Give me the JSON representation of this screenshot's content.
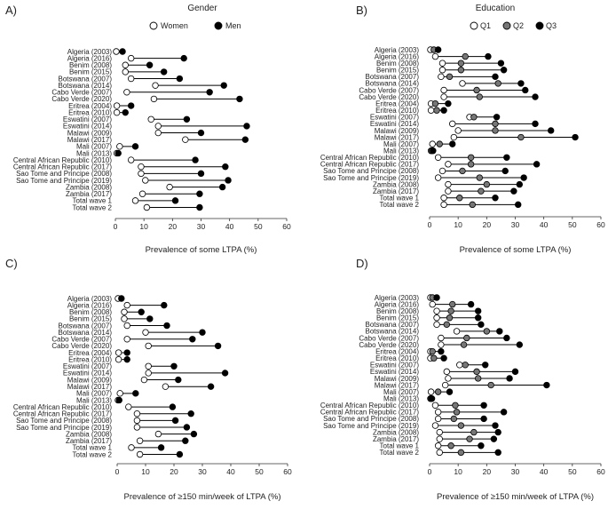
{
  "chart_data": [
    {
      "type": "dot-line",
      "panel_label": "A)",
      "title": "Gender",
      "xlabel": "Prevalence of some LTPA  (%)",
      "xlim": [
        0,
        60
      ],
      "xticks": [
        "0",
        "10",
        "20",
        "30",
        "40",
        "50",
        "60"
      ],
      "categories": [
        "Algeria (2003)",
        "Algeria (2016)",
        "Benim (2008)",
        "Benim (2015)",
        "Botswana (2007)",
        "Botswana (2014)",
        "Cabo Verde (2007)",
        "Cabo Verde (2020)",
        "Eritrea (2004)",
        "Eritrea (2010)",
        "Eswatini (2007)",
        "Eswatini (2014)",
        "Malawi (2009)",
        "Malawi (2017)",
        "Mali (2007)",
        "Mali (2013)",
        "Central African Republic (2010)",
        "Central African Republic (2017)",
        "Sao Tome and Principe (2008)",
        "Sao Tome and Principe (2019)",
        "Zambia (2008)",
        "Zambia (2017)",
        "Total wave 1",
        "Total wave 2"
      ],
      "series": [
        {
          "name": "Women",
          "style": "open",
          "values": [
            0.3,
            5.5,
            3.5,
            3.5,
            5.5,
            14,
            4,
            13.5,
            0.5,
            0.5,
            12.5,
            15,
            15,
            24.5,
            1.5,
            0.5,
            5.5,
            9,
            9,
            10.5,
            19,
            9.5,
            7,
            11
          ]
        },
        {
          "name": "Men",
          "style": "filled",
          "values": [
            2.5,
            24,
            12,
            17,
            22.5,
            38,
            33,
            43.5,
            5.5,
            3.5,
            25,
            46,
            30,
            45.5,
            7,
            1,
            28,
            38.5,
            30,
            39.5,
            37.5,
            29.5,
            21,
            29.5
          ]
        }
      ]
    },
    {
      "type": "dot-line",
      "panel_label": "B)",
      "title": "Education",
      "xlabel": "Prevalence of some LTPA  (%)",
      "xlim": [
        0,
        60
      ],
      "xticks": [
        "0",
        "10",
        "20",
        "30",
        "40",
        "50",
        "60"
      ],
      "categories": [
        "Algeria (2003)",
        "Algeria (2016)",
        "Benim (2008)",
        "Benim (2015)",
        "Botswana (2007)",
        "Botswana (2014)",
        "Cabo Verde (2007)",
        "Cabo Verde (2020)",
        "Eritrea (2004)",
        "Eritrea (2010)",
        "Eswatini (2007)",
        "Eswatini (2014)",
        "Malawi (2009)",
        "Malawi (2017)",
        "Mali (2007)",
        "Mali (2013)",
        "Central African Republic (2010)",
        "Central African Republic (2017)",
        "Sao Tome and Principe (2008)",
        "Sao Tome and Principe (2019)",
        "Zambia (2008)",
        "Zambia (2017)",
        "Total wave 1",
        "Total wave 2"
      ],
      "series": [
        {
          "name": "Q1",
          "style": "open",
          "values": [
            0.3,
            2,
            4.5,
            4.5,
            4,
            11.5,
            5,
            5,
            0.5,
            0.5,
            14,
            8,
            10,
            8.5,
            1,
            0.5,
            3,
            6.5,
            4.5,
            3,
            6.5,
            6.5,
            5,
            5
          ]
        },
        {
          "name": "Q2",
          "style": "grey",
          "values": [
            1.5,
            12.5,
            11,
            11,
            7,
            24,
            16.5,
            17.5,
            2,
            2.5,
            15.5,
            23,
            23,
            32,
            3.5,
            0.8,
            14.5,
            14.5,
            11.5,
            17.5,
            20,
            18,
            10.5,
            15
          ]
        },
        {
          "name": "Q3",
          "style": "filled",
          "values": [
            3,
            20.5,
            25,
            26,
            23,
            32,
            33.5,
            37,
            6.5,
            5,
            23.5,
            37,
            42.5,
            51,
            8,
            1.2,
            27,
            37.5,
            26.5,
            33,
            31.5,
            29.5,
            23,
            31
          ]
        }
      ]
    },
    {
      "type": "dot-line",
      "panel_label": "C)",
      "xlabel": "Prevalence of ≥150 min/week of LTPA (%)",
      "xlim": [
        0,
        60
      ],
      "xticks": [
        "0",
        "10",
        "20",
        "30",
        "40",
        "50",
        "60"
      ],
      "categories": [
        "Algeria (2003)",
        "Algeria (2016)",
        "Benim (2008)",
        "Benim (2015)",
        "Botswana (2007)",
        "Botswana (2014)",
        "Cabo Verde (2007)",
        "Cabo Verde (2020)",
        "Eritrea (2004)",
        "Eritrea (2010)",
        "Eswatini (2007)",
        "Eswatini (2014)",
        "Malawi (2009)",
        "Malawi (2017)",
        "Mali (2007)",
        "Mali (2013)",
        "Central African Republic (2010)",
        "Central African Republic (2017)",
        "Sao Tome and Principe (2008)",
        "Sao Tome and Principe (2019)",
        "Zambia (2008)",
        "Zambia (2017)",
        "Total wave 1",
        "Total wave 2"
      ],
      "series": [
        {
          "name": "Women",
          "style": "open",
          "values": [
            0.3,
            3.5,
            2.5,
            2.5,
            3.5,
            10,
            3.5,
            11,
            0.5,
            0.5,
            11,
            11,
            9.5,
            17,
            1,
            0.3,
            4,
            7,
            7,
            7,
            14.5,
            8,
            5,
            8
          ]
        },
        {
          "name": "Men",
          "style": "filled",
          "values": [
            1.5,
            16.5,
            8.5,
            11.5,
            17.5,
            30,
            26.5,
            35.5,
            3.5,
            3.5,
            20,
            38,
            21.5,
            33,
            6.5,
            0.7,
            19.5,
            26,
            20.5,
            24.5,
            27,
            24,
            15.5,
            22
          ]
        }
      ]
    },
    {
      "type": "dot-line",
      "panel_label": "D)",
      "xlabel": "Prevalence of ≥150 min/week of LTPA (%)",
      "xlim": [
        0,
        60
      ],
      "xticks": [
        "0",
        "10",
        "20",
        "30",
        "40",
        "50",
        "60"
      ],
      "categories": [
        "Algeria (2003)",
        "Algeria (2016)",
        "Benim (2008)",
        "Benim (2015)",
        "Botswana (2007)",
        "Botswana (2014)",
        "Cabo Verde (2007)",
        "Cabo Verde (2020)",
        "Eritrea (2004)",
        "Eritrea (2010)",
        "Eswatini (2007)",
        "Eswatini (2014)",
        "Malawi (2009)",
        "Malawi (2017)",
        "Mali (2007)",
        "Mali (2013)",
        "Central African Republic (2010)",
        "Central African Republic (2017)",
        "Sao Tome and Principe (2008)",
        "Sao Tome and Principe (2019)",
        "Zambia (2008)",
        "Zambia (2017)",
        "Total wave 1",
        "Total wave 2"
      ],
      "series": [
        {
          "name": "Q1",
          "style": "open",
          "values": [
            0.3,
            1,
            2.5,
            2.5,
            2.5,
            9.5,
            4,
            4,
            0.3,
            0.3,
            10.5,
            6,
            6.5,
            5.5,
            0.5,
            0.3,
            2,
            3,
            3,
            2,
            3.5,
            3.5,
            3,
            3.5
          ]
        },
        {
          "name": "Q2",
          "style": "grey",
          "values": [
            1,
            8,
            7.5,
            7,
            6,
            20,
            13,
            12,
            1,
            1.5,
            12.5,
            16.5,
            17,
            21.5,
            3,
            0.5,
            9,
            9.5,
            8.5,
            11,
            15.5,
            14,
            7.5,
            11
          ]
        },
        {
          "name": "Q3",
          "style": "filled",
          "values": [
            2.5,
            14.5,
            17,
            17,
            18,
            24.5,
            27,
            31.5,
            4,
            5,
            19.5,
            30,
            28,
            41,
            7,
            0.8,
            19,
            26,
            19,
            23,
            24,
            22.5,
            18,
            24
          ]
        }
      ]
    }
  ],
  "legends": {
    "gender": [
      "Women",
      "Men"
    ],
    "education": [
      "Q1",
      "Q2",
      "Q3"
    ]
  }
}
